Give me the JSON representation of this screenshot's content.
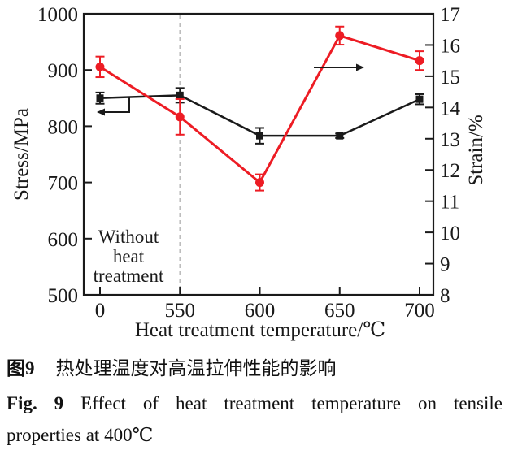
{
  "chart_data": {
    "type": "line",
    "categories": [
      "0",
      "550",
      "600",
      "650",
      "700"
    ],
    "x_axis": {
      "label": "Heat treatment temperature/℃"
    },
    "left_axis": {
      "label": "Stress/MPa",
      "min": 500,
      "max": 1000,
      "ticks": [
        500,
        600,
        700,
        800,
        900,
        1000
      ]
    },
    "right_axis": {
      "label": "Strain/%",
      "min": 8,
      "max": 17,
      "ticks": [
        8,
        9,
        10,
        11,
        12,
        13,
        14,
        15,
        16,
        17
      ]
    },
    "series": [
      {
        "name": "stress",
        "axis": "left",
        "color": "#1a1a1a",
        "marker": "square",
        "values": [
          850,
          855,
          783,
          783,
          848
        ],
        "errors": [
          10,
          13,
          14,
          4,
          9
        ]
      },
      {
        "name": "strain",
        "axis": "right",
        "color": "#ed1c24",
        "marker": "circle",
        "values": [
          15.3,
          13.7,
          11.6,
          16.3,
          15.5
        ],
        "errors": [
          0.33,
          0.57,
          0.26,
          0.29,
          0.3
        ]
      }
    ],
    "annotations": {
      "no_heat_label": [
        "Without",
        "heat",
        "treatment"
      ],
      "divider_at_category": "550",
      "divider_color": "#bdbdbd",
      "arrows": [
        {
          "series": "stress",
          "points_to": "left-axis"
        },
        {
          "series": "strain",
          "points_to": "right-axis"
        }
      ]
    },
    "grid": false,
    "legend": "none"
  },
  "caption": {
    "fig_label_zh": "图9",
    "title_zh": "热处理温度对高温拉伸性能的影响",
    "fig_label_en": "Fig. 9",
    "title_en_line1": "Effect of heat treatment temperature on tensile",
    "title_en_line2": "properties at 400℃"
  }
}
